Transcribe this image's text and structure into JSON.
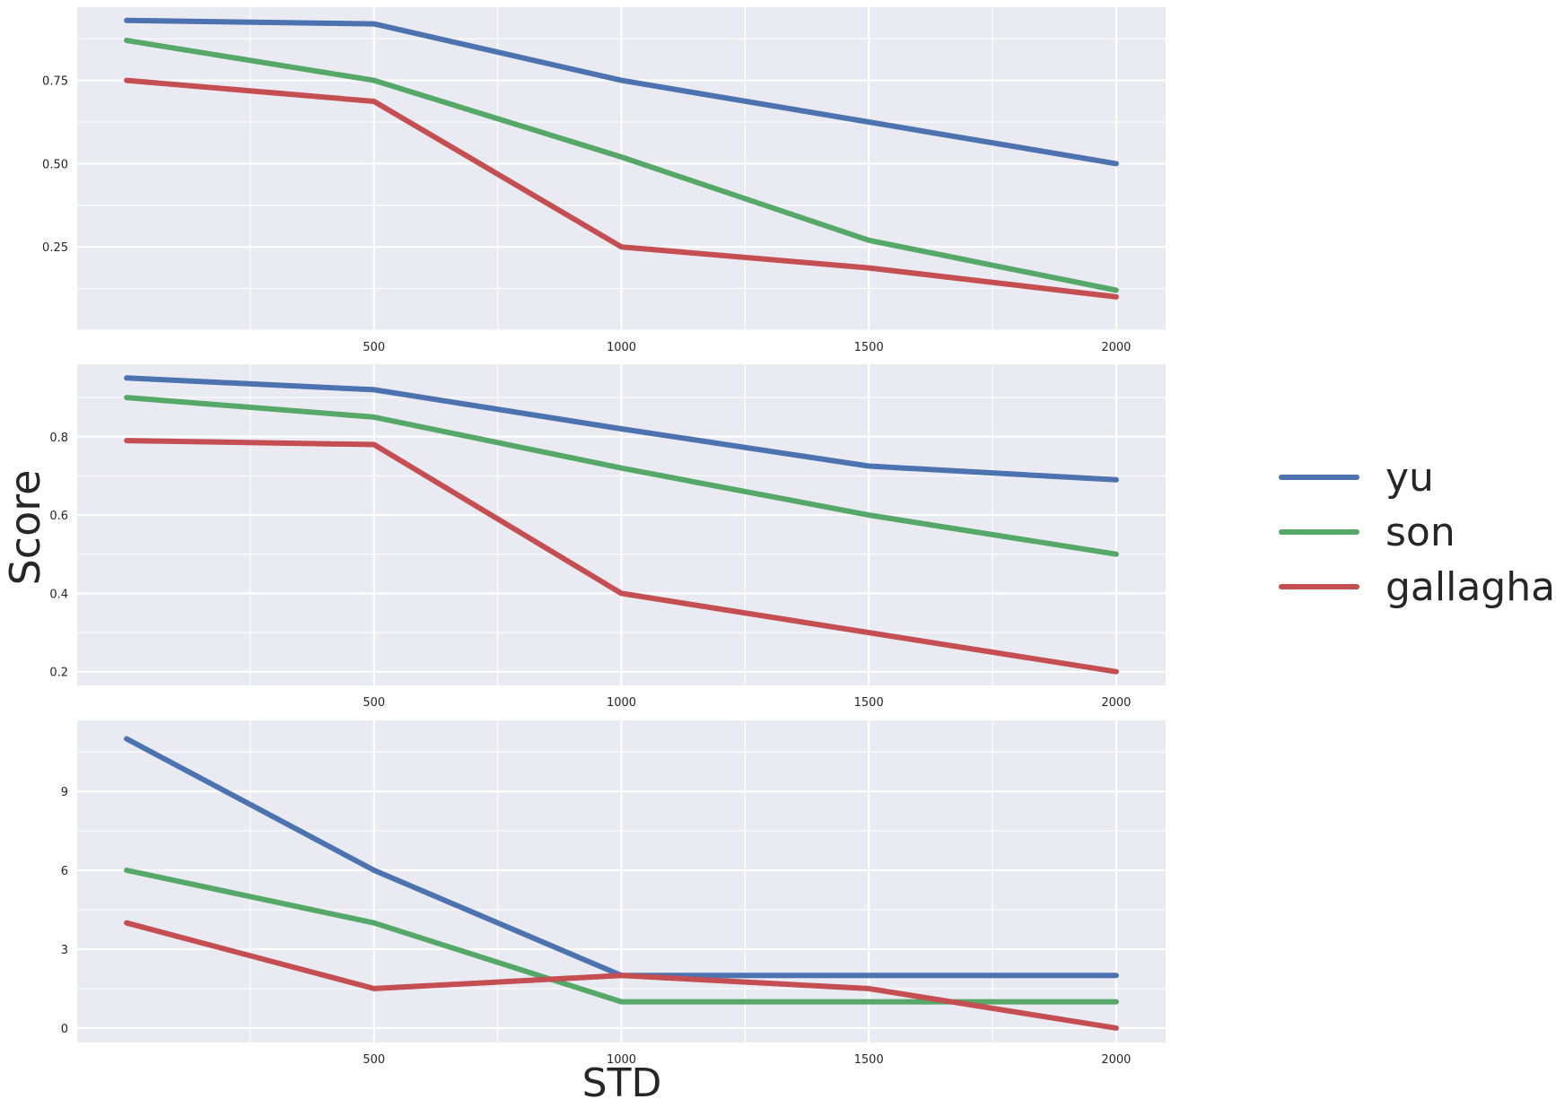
{
  "chart_data": {
    "type": "line",
    "shared_ylabel": "Score",
    "shared_xlabel": "STD",
    "legend_placement": "right",
    "colors": {
      "yu": "#4c72b0",
      "son": "#55a868",
      "gallaghar": "#c44e52",
      "panel_bg": "#eaeaf2",
      "grid": "#ffffff"
    },
    "series_names": [
      "yu",
      "son",
      "gallaghar"
    ],
    "panels": [
      {
        "x": [
          0,
          500,
          1000,
          1500,
          2000
        ],
        "xlim": [
          -100,
          2100
        ],
        "xticks": [
          500,
          1000,
          1500,
          2000
        ],
        "xtick_labels": [
          "500",
          "1000",
          "1500",
          "2000"
        ],
        "ylim": [
          0.0,
          0.97
        ],
        "yticks": [
          0.25,
          0.5,
          0.75
        ],
        "ytick_labels": [
          "0.25",
          "0.50",
          "0.75"
        ],
        "series": [
          {
            "name": "yu",
            "values": [
              0.93,
              0.92,
              0.75,
              0.625,
              0.5
            ]
          },
          {
            "name": "son",
            "values": [
              0.87,
              0.75,
              0.52,
              0.27,
              0.12
            ]
          },
          {
            "name": "gallaghar",
            "values": [
              0.75,
              0.687,
              0.25,
              0.187,
              0.1
            ]
          }
        ]
      },
      {
        "x": [
          0,
          500,
          1000,
          1500,
          2000
        ],
        "xlim": [
          -100,
          2100
        ],
        "xticks": [
          500,
          1000,
          1500,
          2000
        ],
        "xtick_labels": [
          "500",
          "1000",
          "1500",
          "2000"
        ],
        "ylim": [
          0.165,
          0.985
        ],
        "yticks": [
          0.2,
          0.4,
          0.6,
          0.8
        ],
        "ytick_labels": [
          "0.2",
          "0.4",
          "0.6",
          "0.8"
        ],
        "series": [
          {
            "name": "yu",
            "values": [
              0.95,
              0.92,
              0.82,
              0.725,
              0.69
            ]
          },
          {
            "name": "son",
            "values": [
              0.9,
              0.85,
              0.72,
              0.6,
              0.5
            ]
          },
          {
            "name": "gallaghar",
            "values": [
              0.79,
              0.78,
              0.4,
              0.3,
              0.2
            ]
          }
        ]
      },
      {
        "x": [
          0,
          500,
          1000,
          1500,
          2000
        ],
        "xlim": [
          -100,
          2100
        ],
        "xticks": [
          500,
          1000,
          1500,
          2000
        ],
        "xtick_labels": [
          "500",
          "1000",
          "1500",
          "2000"
        ],
        "ylim": [
          -0.55,
          11.7
        ],
        "yticks": [
          0,
          3,
          6,
          9
        ],
        "ytick_labels": [
          "0",
          "3",
          "6",
          "9"
        ],
        "series": [
          {
            "name": "yu",
            "values": [
              11.0,
              6.0,
              2.0,
              2.0,
              2.0
            ]
          },
          {
            "name": "son",
            "values": [
              6.0,
              4.0,
              1.0,
              1.0,
              1.0
            ]
          },
          {
            "name": "gallaghar",
            "values": [
              4.0,
              1.5,
              2.0,
              1.5,
              0.0
            ]
          }
        ]
      }
    ]
  }
}
